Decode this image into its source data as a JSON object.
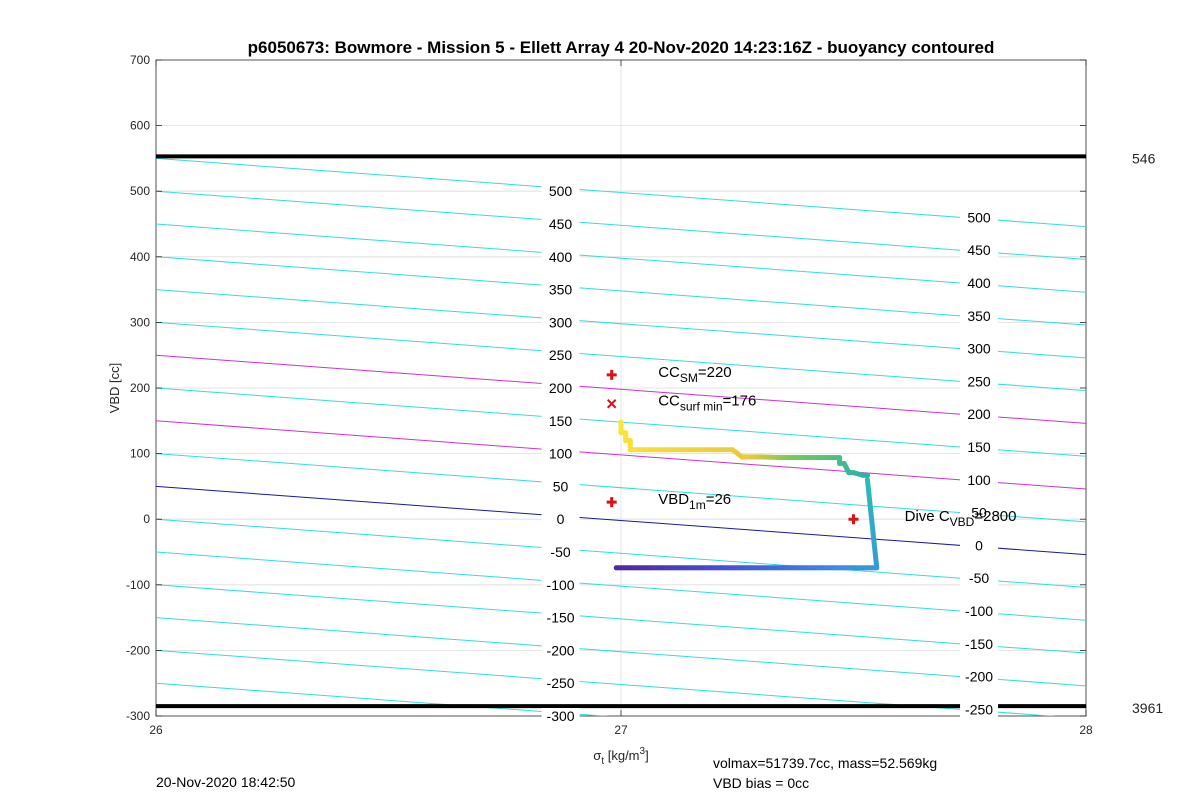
{
  "chart_data": {
    "type": "line",
    "title": "p6050673: Bowmore - Mission 5 - Ellett Array 4 20-Nov-2020 14:23:16Z - buoyancy contoured",
    "xlabel": "σ",
    "xlabel_sub": "t",
    "xlabel_unit": " [kg/m",
    "xlabel_unit_sup": "3",
    "xlabel_unit_end": "]",
    "ylabel": "VBD [cc]",
    "xlim": [
      26,
      28
    ],
    "ylim": [
      -300,
      700
    ],
    "x_ticks": [
      26,
      27,
      28
    ],
    "y_ticks": [
      -300,
      -200,
      -100,
      0,
      100,
      200,
      300,
      400,
      500,
      600,
      700
    ],
    "grid": true,
    "limit_lines": [
      {
        "y": 553,
        "label": "546"
      },
      {
        "y": -285,
        "label": "3961"
      }
    ],
    "contour_slope_cc_per_kgm3": -52,
    "contours": [
      {
        "level": 500,
        "y_at_26": 550,
        "color": "#33dddd"
      },
      {
        "level": 450,
        "y_at_26": 500,
        "color": "#33dddd"
      },
      {
        "level": 400,
        "y_at_26": 450,
        "color": "#33dddd"
      },
      {
        "level": 350,
        "y_at_26": 400,
        "color": "#33dddd"
      },
      {
        "level": 300,
        "y_at_26": 350,
        "color": "#33dddd"
      },
      {
        "level": 250,
        "y_at_26": 300,
        "color": "#33dddd"
      },
      {
        "level": 200,
        "y_at_26": 250,
        "color": "#cc33cc"
      },
      {
        "level": 150,
        "y_at_26": 200,
        "color": "#33dddd"
      },
      {
        "level": 100,
        "y_at_26": 150,
        "color": "#cc33cc"
      },
      {
        "level": 50,
        "y_at_26": 100,
        "color": "#33dddd"
      },
      {
        "level": 0,
        "y_at_26": 50,
        "color": "#1a1a99"
      },
      {
        "level": -50,
        "y_at_26": 0,
        "color": "#33dddd"
      },
      {
        "level": -100,
        "y_at_26": -50,
        "color": "#33dddd"
      },
      {
        "level": -150,
        "y_at_26": -100,
        "color": "#33dddd"
      },
      {
        "level": -200,
        "y_at_26": -150,
        "color": "#33dddd"
      },
      {
        "level": -250,
        "y_at_26": -200,
        "color": "#33dddd"
      },
      {
        "level": -300,
        "y_at_26": -250,
        "color": "#33dddd"
      }
    ],
    "contour_labels_mid": {
      "x": 26.87,
      "items": [
        {
          "text": "500",
          "y": 500
        },
        {
          "text": "450",
          "y": 450
        },
        {
          "text": "400",
          "y": 400
        },
        {
          "text": "350",
          "y": 350
        },
        {
          "text": "300",
          "y": 300
        },
        {
          "text": "250",
          "y": 250
        },
        {
          "text": "200",
          "y": 200
        },
        {
          "text": "150",
          "y": 150
        },
        {
          "text": "100",
          "y": 100
        },
        {
          "text": "50",
          "y": 50
        },
        {
          "text": "0",
          "y": 0
        },
        {
          "text": "-50",
          "y": -50
        },
        {
          "text": "-100",
          "y": -100
        },
        {
          "text": "-150",
          "y": -150
        },
        {
          "text": "-200",
          "y": -200
        },
        {
          "text": "-250",
          "y": -250
        },
        {
          "text": "-300",
          "y": -300
        }
      ]
    },
    "contour_labels_right": {
      "x": 27.77,
      "items": [
        {
          "text": "500",
          "y": 460
        },
        {
          "text": "450",
          "y": 410
        },
        {
          "text": "400",
          "y": 360
        },
        {
          "text": "350",
          "y": 310
        },
        {
          "text": "300",
          "y": 260
        },
        {
          "text": "250",
          "y": 210
        },
        {
          "text": "200",
          "y": 160
        },
        {
          "text": "150",
          "y": 110
        },
        {
          "text": "100",
          "y": 60
        },
        {
          "text": "50",
          "y": 10
        },
        {
          "text": "0",
          "y": -40
        },
        {
          "text": "-50",
          "y": -90
        },
        {
          "text": "-100",
          "y": -140
        },
        {
          "text": "-150",
          "y": -190
        },
        {
          "text": "-200",
          "y": -240
        },
        {
          "text": "-250",
          "y": -290
        }
      ]
    },
    "dive_trace": {
      "x": [
        27.0,
        27.0,
        27.01,
        27.01,
        27.02,
        27.02,
        27.05,
        27.1,
        27.15,
        27.2,
        27.24,
        27.26,
        27.3,
        27.35,
        27.4,
        27.44,
        27.47,
        27.47,
        27.48,
        27.49,
        27.5,
        27.52,
        27.53
      ],
      "y": [
        148,
        132,
        132,
        120,
        120,
        106,
        106,
        106,
        106,
        106,
        106,
        95,
        95,
        94,
        94,
        94,
        94,
        85,
        85,
        71,
        71,
        67,
        67
      ]
    },
    "climb_trace": {
      "x": [
        27.53,
        27.55,
        27.5,
        27.45,
        27.4,
        27.35,
        27.3,
        27.25,
        27.2,
        27.15,
        27.1,
        27.05,
        27.0,
        26.99
      ],
      "y": [
        60,
        -74,
        -74,
        -74,
        -74,
        -74,
        -74,
        -74,
        -74,
        -74,
        -74,
        -74,
        -74,
        -74
      ]
    },
    "markers": [
      {
        "type": "plus",
        "x": 26.98,
        "y": 220,
        "color": "#dd1111"
      },
      {
        "type": "cross",
        "x": 26.98,
        "y": 176,
        "color": "#dd1111"
      },
      {
        "type": "plus",
        "x": 26.98,
        "y": 26,
        "color": "#dd1111"
      },
      {
        "type": "plus",
        "x": 27.5,
        "y": 0,
        "color": "#dd1111"
      }
    ],
    "annotations": [
      {
        "base": "CC",
        "sub": "SM",
        "value": "=220",
        "x": 27.08,
        "y": 220
      },
      {
        "base": "CC",
        "sub": "surf min",
        "value": "=176",
        "x": 27.08,
        "y": 176
      },
      {
        "base": "VBD",
        "sub": "1m",
        "value": "=26",
        "x": 27.08,
        "y": 26
      },
      {
        "base": "Dive C",
        "sub": "VBD",
        "value": "=2800",
        "x": 27.61,
        "y": 0
      }
    ]
  },
  "footer": {
    "timestamp": "20-Nov-2020 18:42:50",
    "volmax": "volmax=51739.7cc, mass=52.569kg",
    "vbd_bias": "VBD bias = 0cc"
  }
}
